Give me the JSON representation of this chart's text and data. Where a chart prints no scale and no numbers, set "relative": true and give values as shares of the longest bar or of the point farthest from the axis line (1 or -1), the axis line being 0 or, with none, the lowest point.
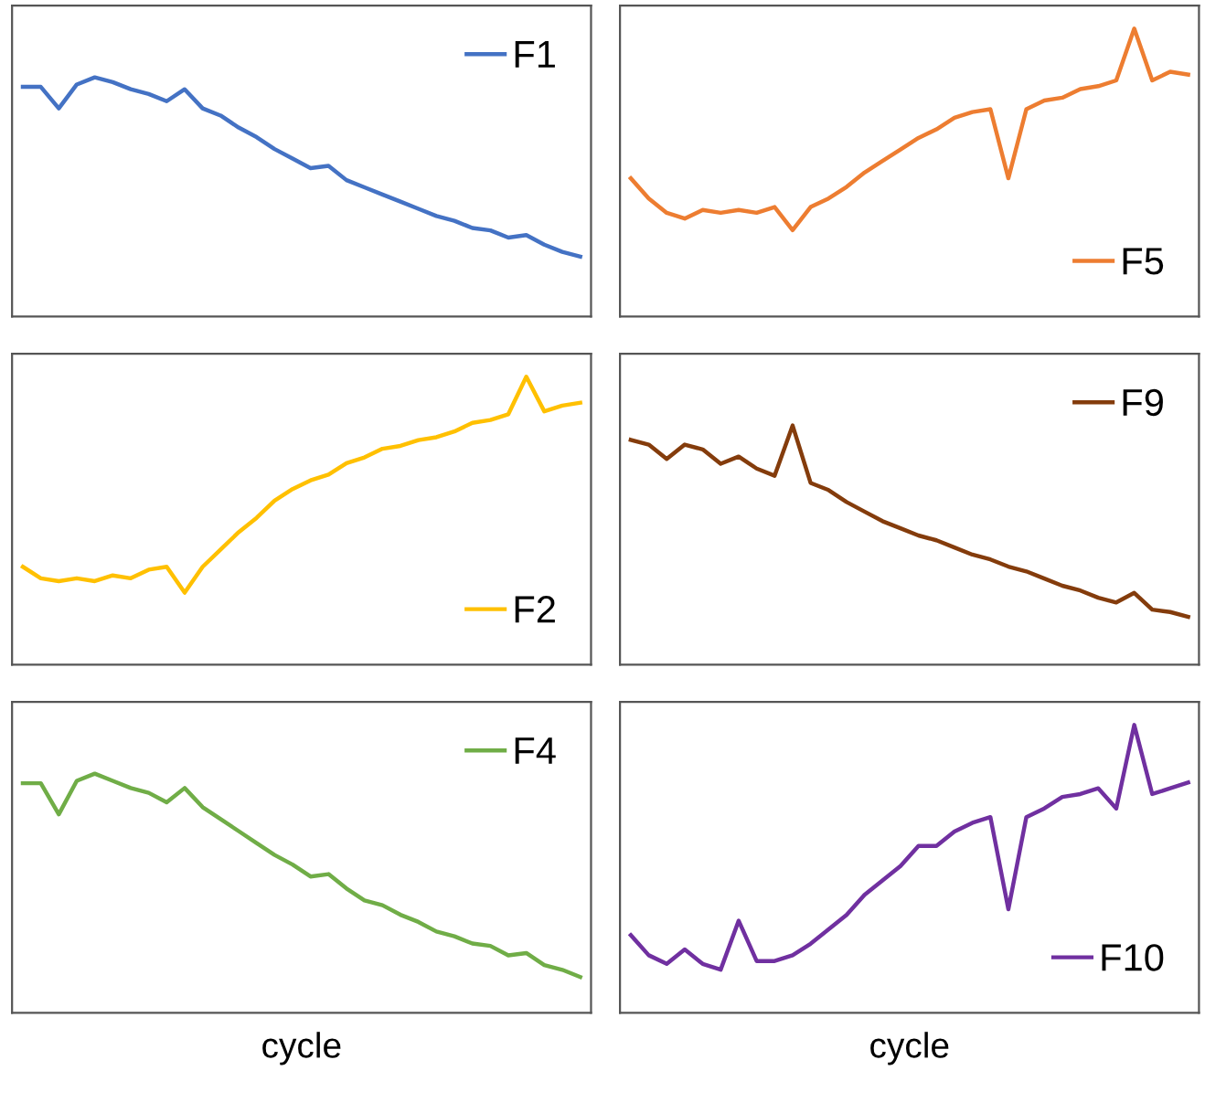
{
  "chart_data": [
    {
      "type": "line",
      "relative": true,
      "categories": [
        null,
        null,
        null,
        null,
        null,
        null,
        null,
        null,
        null,
        null,
        null,
        null,
        null,
        null,
        null,
        null,
        null,
        null,
        null,
        null,
        null,
        null,
        null,
        null,
        null,
        null,
        null,
        null,
        null,
        null,
        null,
        null
      ],
      "series": [
        {
          "name": "F1",
          "color": "#4472c4",
          "values": [
            0.96,
            0.96,
            0.87,
            0.97,
            1.0,
            0.98,
            0.95,
            0.93,
            0.9,
            0.95,
            0.87,
            0.84,
            0.79,
            0.75,
            0.7,
            0.66,
            0.62,
            0.63,
            0.57,
            0.54,
            0.51,
            0.48,
            0.45,
            0.42,
            0.4,
            0.37,
            0.36,
            0.33,
            0.34,
            0.3,
            0.27,
            0.25
          ]
        }
      ],
      "legend": "top right",
      "grid": false
    },
    {
      "type": "line",
      "relative": true,
      "categories": [
        null,
        null,
        null,
        null,
        null,
        null,
        null,
        null,
        null,
        null,
        null,
        null,
        null,
        null,
        null,
        null,
        null,
        null,
        null,
        null,
        null,
        null,
        null,
        null,
        null,
        null,
        null,
        null,
        null,
        null,
        null,
        null
      ],
      "series": [
        {
          "name": "F5",
          "color": "#ed7d31",
          "values": [
            0.48,
            0.41,
            0.36,
            0.34,
            0.37,
            0.36,
            0.37,
            0.36,
            0.38,
            0.3,
            0.38,
            0.41,
            0.45,
            0.5,
            0.54,
            0.58,
            0.62,
            0.65,
            0.69,
            0.71,
            0.72,
            0.48,
            0.72,
            0.75,
            0.76,
            0.79,
            0.8,
            0.82,
            1.0,
            0.82,
            0.85,
            0.84
          ]
        }
      ],
      "legend": "bottom right",
      "grid": false
    },
    {
      "type": "line",
      "relative": true,
      "categories": [
        null,
        null,
        null,
        null,
        null,
        null,
        null,
        null,
        null,
        null,
        null,
        null,
        null,
        null,
        null,
        null,
        null,
        null,
        null,
        null,
        null,
        null,
        null,
        null,
        null,
        null,
        null,
        null,
        null,
        null,
        null,
        null
      ],
      "series": [
        {
          "name": "F2",
          "color": "#ffc000",
          "values": [
            0.34,
            0.3,
            0.29,
            0.3,
            0.29,
            0.31,
            0.3,
            0.33,
            0.34,
            0.25,
            0.34,
            0.4,
            0.46,
            0.51,
            0.57,
            0.61,
            0.64,
            0.66,
            0.7,
            0.72,
            0.75,
            0.76,
            0.78,
            0.79,
            0.81,
            0.84,
            0.85,
            0.87,
            1.0,
            0.88,
            0.9,
            0.91
          ]
        }
      ],
      "legend": "bottom right",
      "grid": false
    },
    {
      "type": "line",
      "relative": true,
      "categories": [
        null,
        null,
        null,
        null,
        null,
        null,
        null,
        null,
        null,
        null,
        null,
        null,
        null,
        null,
        null,
        null,
        null,
        null,
        null,
        null,
        null,
        null,
        null,
        null,
        null,
        null,
        null,
        null,
        null,
        null,
        null,
        null
      ],
      "series": [
        {
          "name": "F9",
          "color": "#843c0c",
          "values": [
            0.94,
            0.92,
            0.86,
            0.92,
            0.9,
            0.84,
            0.87,
            0.82,
            0.79,
            1.0,
            0.76,
            0.73,
            0.68,
            0.64,
            0.6,
            0.57,
            0.54,
            0.52,
            0.49,
            0.46,
            0.44,
            0.41,
            0.39,
            0.36,
            0.33,
            0.31,
            0.28,
            0.26,
            0.3,
            0.23,
            0.22,
            0.2
          ]
        }
      ],
      "legend": "top right",
      "grid": false
    },
    {
      "type": "line",
      "relative": true,
      "xlabel": "cycle",
      "categories": [
        null,
        null,
        null,
        null,
        null,
        null,
        null,
        null,
        null,
        null,
        null,
        null,
        null,
        null,
        null,
        null,
        null,
        null,
        null,
        null,
        null,
        null,
        null,
        null,
        null,
        null,
        null,
        null,
        null,
        null,
        null,
        null
      ],
      "series": [
        {
          "name": "F4",
          "color": "#70ad47",
          "values": [
            0.96,
            0.96,
            0.83,
            0.97,
            1.0,
            0.97,
            0.94,
            0.92,
            0.88,
            0.94,
            0.86,
            0.81,
            0.76,
            0.71,
            0.66,
            0.62,
            0.57,
            0.58,
            0.52,
            0.47,
            0.45,
            0.41,
            0.38,
            0.34,
            0.32,
            0.29,
            0.28,
            0.24,
            0.25,
            0.2,
            0.18,
            0.15
          ]
        }
      ],
      "legend": "top right",
      "grid": false
    },
    {
      "type": "line",
      "relative": true,
      "xlabel": "cycle",
      "categories": [
        null,
        null,
        null,
        null,
        null,
        null,
        null,
        null,
        null,
        null,
        null,
        null,
        null,
        null,
        null,
        null,
        null,
        null,
        null,
        null,
        null,
        null,
        null,
        null,
        null,
        null,
        null,
        null,
        null,
        null,
        null,
        null
      ],
      "series": [
        {
          "name": "F10",
          "color": "#7030a0",
          "values": [
            0.27,
            0.2,
            0.17,
            0.22,
            0.17,
            0.15,
            0.32,
            0.18,
            0.18,
            0.2,
            0.24,
            0.29,
            0.34,
            0.41,
            0.46,
            0.51,
            0.58,
            0.58,
            0.63,
            0.66,
            0.68,
            0.36,
            0.68,
            0.71,
            0.75,
            0.76,
            0.78,
            0.71,
            1.0,
            0.76,
            0.78,
            0.8
          ]
        }
      ],
      "legend": "bottom right",
      "grid": false
    }
  ]
}
